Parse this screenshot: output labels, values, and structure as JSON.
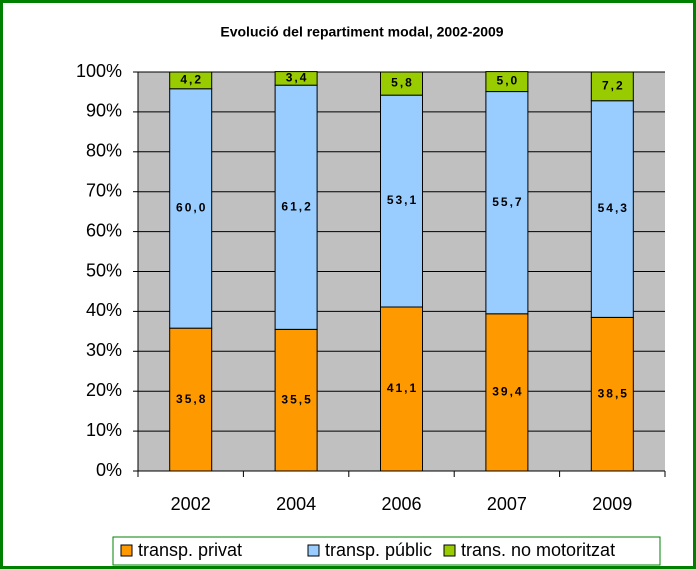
{
  "chart_data": {
    "type": "stacked_bar",
    "title": "Evolució del repartiment modal, 2002-2009",
    "categories": [
      "2002",
      "2004",
      "2006",
      "2007",
      "2009"
    ],
    "series": [
      {
        "name": "transp. privat",
        "color": "#ff9900",
        "values": [
          35.8,
          35.5,
          41.1,
          39.4,
          38.5
        ],
        "value_labels": [
          "35,8",
          "35,5",
          "41,1",
          "39,4",
          "38,5"
        ]
      },
      {
        "name": "transp. públic",
        "color": "#99ccff",
        "values": [
          60.0,
          61.2,
          53.1,
          55.7,
          54.3
        ],
        "value_labels": [
          "60,0",
          "61,2",
          "53,1",
          "55,7",
          "54,3"
        ]
      },
      {
        "name": "trans. no motoritzat",
        "color": "#99cc00",
        "values": [
          4.2,
          3.4,
          5.8,
          5.0,
          7.2
        ],
        "value_labels": [
          "4,2",
          "3,4",
          "5,8",
          "5,0",
          "7,2"
        ]
      }
    ],
    "ylim": [
      0,
      100
    ],
    "yticks": [
      {
        "value": 0,
        "label": "0%"
      },
      {
        "value": 10,
        "label": "10%"
      },
      {
        "value": 20,
        "label": "20%"
      },
      {
        "value": 30,
        "label": "30%"
      },
      {
        "value": 40,
        "label": "40%"
      },
      {
        "value": 50,
        "label": "50%"
      },
      {
        "value": 60,
        "label": "60%"
      },
      {
        "value": 70,
        "label": "70%"
      },
      {
        "value": 80,
        "label": "80%"
      },
      {
        "value": 90,
        "label": "90%"
      },
      {
        "value": 100,
        "label": "100%"
      }
    ],
    "grid": true,
    "legend": "bottom"
  }
}
